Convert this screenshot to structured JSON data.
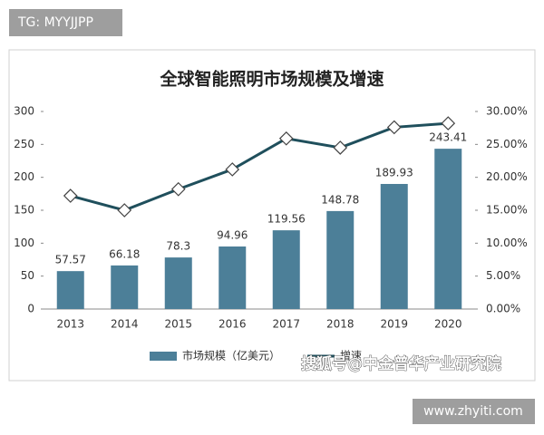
{
  "chart_data": {
    "type": "bar-line",
    "title": "全球智能照明市场规模及增速",
    "categories": [
      "2013",
      "2014",
      "2015",
      "2016",
      "2017",
      "2018",
      "2019",
      "2020"
    ],
    "series": [
      {
        "name": "市场规模（亿美元）",
        "type": "bar",
        "color": "#4c7f98",
        "values": [
          57.57,
          66.18,
          78.3,
          94.96,
          119.56,
          148.78,
          189.93,
          243.41
        ]
      },
      {
        "name": "增速",
        "type": "line",
        "axis": "y2",
        "color": "#1f4f5c",
        "values": [
          17.2,
          15.0,
          18.2,
          21.2,
          25.9,
          24.5,
          27.6,
          28.2
        ]
      }
    ],
    "ylim": [
      0,
      300
    ],
    "yticks": [
      0,
      50,
      100,
      150,
      200,
      250,
      300
    ],
    "y2lim": [
      0,
      30
    ],
    "y2ticks": [
      {
        "value": 0,
        "label": "0.00%"
      },
      {
        "value": 5,
        "label": "5.00%"
      },
      {
        "value": 10,
        "label": "10.00%"
      },
      {
        "value": 15,
        "label": "15.00%"
      },
      {
        "value": 20,
        "label": "20.00%"
      },
      {
        "value": 25,
        "label": "25.00%"
      },
      {
        "value": 30,
        "label": "30.00%"
      }
    ],
    "grid": false
  },
  "watermarks": {
    "top_left": "TG: MYYJJPP",
    "overlay": "搜狐号@中金普华产业研究院",
    "bottom_right": "www.zhyiti.com"
  }
}
